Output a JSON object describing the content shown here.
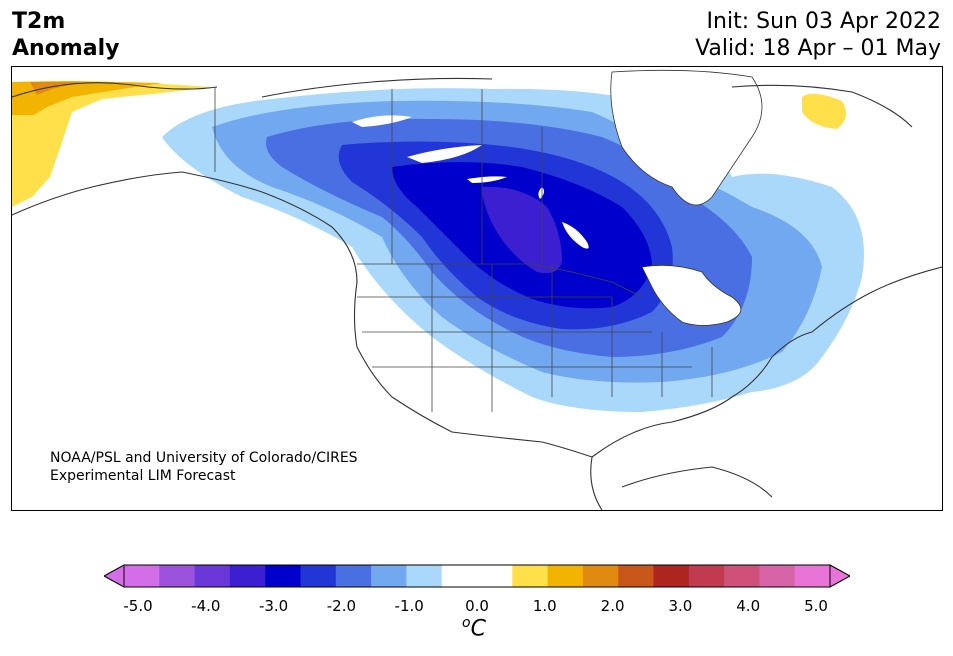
{
  "header": {
    "title_line1": "T2m",
    "title_line2": "Anomaly",
    "init": "Init: Sun 03 Apr 2022",
    "valid": "Valid: 18 Apr – 01 May"
  },
  "credit": {
    "line1": "NOAA/PSL and University of Colorado/CIRES",
    "line2": "Experimental LIM Forecast"
  },
  "colorbar": {
    "ticks": [
      "-5.0",
      "-4.0",
      "-3.0",
      "-2.0",
      "-1.0",
      "0.0",
      "1.0",
      "2.0",
      "3.0",
      "4.0",
      "5.0"
    ],
    "unit_base": "C",
    "unit_sup": "o",
    "colors": [
      "#d36ee8",
      "#9d52de",
      "#6a38d8",
      "#3c1fd0",
      "#0000cc",
      "#2236d8",
      "#4a6fe3",
      "#72a8f0",
      "#aad8fa",
      "#ffffff",
      "#ffffff",
      "#ffe04a",
      "#f2b400",
      "#e08a10",
      "#c8581a",
      "#ad2420",
      "#c23a50",
      "#cf5078",
      "#d864a8",
      "#e874d8"
    ]
  },
  "map": {
    "region": "North America",
    "max_cold_anomaly_C": -3.5,
    "max_warm_anomaly_C": 2.5
  }
}
